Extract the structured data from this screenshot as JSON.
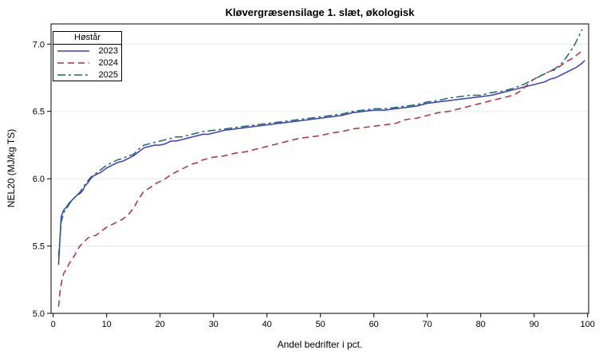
{
  "colors": {
    "background": "#ffffff",
    "grid": "#e9e9e9",
    "frame": "#000000",
    "series_2023": "#3a3acd",
    "series_2024": "#b02e3f",
    "series_2025": "#176d62"
  },
  "chart_data": {
    "type": "line",
    "title": "Kløvergræsensilage 1. slæt, økologisk",
    "xlabel": "Andel bedrifter i pct.",
    "ylabel": "NEL20 (MJ/kg TS)",
    "xlim": [
      -0.4,
      100.2
    ],
    "ylim": [
      5.0,
      7.15
    ],
    "grid": "horizontal",
    "x_ticks": [
      0,
      10,
      20,
      30,
      40,
      50,
      60,
      70,
      80,
      90,
      100
    ],
    "x_tick_labels": [
      "0",
      "10",
      "20",
      "30",
      "40",
      "50",
      "60",
      "70",
      "80",
      "90",
      "100"
    ],
    "y_ticks": [
      5.0,
      5.5,
      6.0,
      6.5,
      7.0
    ],
    "y_tick_labels": [
      "5.0",
      "5.5",
      "6.0",
      "6.5",
      "7.0"
    ],
    "legend": {
      "title": "Høstår",
      "position": "top-left"
    },
    "series": [
      {
        "name": "2023",
        "color": "#3a3acd",
        "dash": "solid",
        "points": [
          [
            1,
            5.36
          ],
          [
            1.2,
            5.5
          ],
          [
            1.5,
            5.72
          ],
          [
            2,
            5.77
          ],
          [
            2.5,
            5.79
          ],
          [
            3,
            5.82
          ],
          [
            3.5,
            5.84
          ],
          [
            4,
            5.86
          ],
          [
            4.5,
            5.88
          ],
          [
            5,
            5.89
          ],
          [
            5.5,
            5.91
          ],
          [
            6,
            5.95
          ],
          [
            6.5,
            5.97
          ],
          [
            7,
            6.0
          ],
          [
            7.5,
            6.02
          ],
          [
            8,
            6.03
          ],
          [
            9,
            6.05
          ],
          [
            10,
            6.08
          ],
          [
            11,
            6.1
          ],
          [
            12,
            6.12
          ],
          [
            13,
            6.13
          ],
          [
            14,
            6.15
          ],
          [
            15,
            6.17
          ],
          [
            16,
            6.2
          ],
          [
            17,
            6.23
          ],
          [
            18,
            6.24
          ],
          [
            19,
            6.25
          ],
          [
            20,
            6.25
          ],
          [
            21,
            6.26
          ],
          [
            22,
            6.28
          ],
          [
            23,
            6.28
          ],
          [
            24,
            6.29
          ],
          [
            25,
            6.3
          ],
          [
            26,
            6.31
          ],
          [
            27,
            6.32
          ],
          [
            28,
            6.33
          ],
          [
            29,
            6.33
          ],
          [
            30,
            6.34
          ],
          [
            32,
            6.36
          ],
          [
            34,
            6.37
          ],
          [
            36,
            6.38
          ],
          [
            38,
            6.39
          ],
          [
            40,
            6.4
          ],
          [
            42,
            6.41
          ],
          [
            44,
            6.42
          ],
          [
            46,
            6.43
          ],
          [
            48,
            6.44
          ],
          [
            50,
            6.45
          ],
          [
            52,
            6.46
          ],
          [
            54,
            6.47
          ],
          [
            56,
            6.49
          ],
          [
            58,
            6.5
          ],
          [
            60,
            6.51
          ],
          [
            62,
            6.51
          ],
          [
            64,
            6.52
          ],
          [
            66,
            6.53
          ],
          [
            68,
            6.54
          ],
          [
            70,
            6.56
          ],
          [
            72,
            6.57
          ],
          [
            74,
            6.58
          ],
          [
            76,
            6.59
          ],
          [
            78,
            6.6
          ],
          [
            80,
            6.61
          ],
          [
            82,
            6.62
          ],
          [
            84,
            6.64
          ],
          [
            86,
            6.66
          ],
          [
            88,
            6.68
          ],
          [
            89,
            6.69
          ],
          [
            90,
            6.7
          ],
          [
            91,
            6.71
          ],
          [
            92,
            6.72
          ],
          [
            93,
            6.74
          ],
          [
            94,
            6.75
          ],
          [
            95,
            6.77
          ],
          [
            96,
            6.79
          ],
          [
            97,
            6.81
          ],
          [
            98,
            6.83
          ],
          [
            99,
            6.86
          ],
          [
            99.5,
            6.88
          ]
        ]
      },
      {
        "name": "2024",
        "color": "#b02e3f",
        "dash": "dash",
        "points": [
          [
            1,
            5.05
          ],
          [
            1.3,
            5.17
          ],
          [
            1.7,
            5.26
          ],
          [
            2,
            5.3
          ],
          [
            2.5,
            5.33
          ],
          [
            3,
            5.37
          ],
          [
            3.5,
            5.4
          ],
          [
            4,
            5.43
          ],
          [
            4.5,
            5.47
          ],
          [
            5,
            5.5
          ],
          [
            5.5,
            5.52
          ],
          [
            6,
            5.54
          ],
          [
            6.5,
            5.56
          ],
          [
            7,
            5.57
          ],
          [
            8,
            5.58
          ],
          [
            9,
            5.61
          ],
          [
            10,
            5.64
          ],
          [
            11,
            5.66
          ],
          [
            12,
            5.68
          ],
          [
            13,
            5.7
          ],
          [
            14,
            5.73
          ],
          [
            15,
            5.78
          ],
          [
            16,
            5.85
          ],
          [
            17,
            5.91
          ],
          [
            18,
            5.93
          ],
          [
            19,
            5.96
          ],
          [
            20,
            5.98
          ],
          [
            21,
            6.0
          ],
          [
            22,
            6.03
          ],
          [
            23,
            6.05
          ],
          [
            24,
            6.07
          ],
          [
            25,
            6.09
          ],
          [
            26,
            6.11
          ],
          [
            27,
            6.12
          ],
          [
            28,
            6.14
          ],
          [
            29,
            6.15
          ],
          [
            30,
            6.16
          ],
          [
            32,
            6.17
          ],
          [
            34,
            6.19
          ],
          [
            36,
            6.2
          ],
          [
            38,
            6.22
          ],
          [
            40,
            6.24
          ],
          [
            42,
            6.26
          ],
          [
            44,
            6.28
          ],
          [
            46,
            6.3
          ],
          [
            48,
            6.31
          ],
          [
            50,
            6.32
          ],
          [
            52,
            6.34
          ],
          [
            54,
            6.35
          ],
          [
            56,
            6.37
          ],
          [
            58,
            6.38
          ],
          [
            60,
            6.39
          ],
          [
            62,
            6.4
          ],
          [
            64,
            6.41
          ],
          [
            66,
            6.44
          ],
          [
            68,
            6.45
          ],
          [
            70,
            6.47
          ],
          [
            72,
            6.49
          ],
          [
            74,
            6.5
          ],
          [
            76,
            6.52
          ],
          [
            78,
            6.54
          ],
          [
            80,
            6.56
          ],
          [
            82,
            6.58
          ],
          [
            84,
            6.6
          ],
          [
            86,
            6.62
          ],
          [
            87,
            6.64
          ],
          [
            88,
            6.67
          ],
          [
            89,
            6.71
          ],
          [
            90,
            6.74
          ],
          [
            91,
            6.76
          ],
          [
            92,
            6.78
          ],
          [
            93,
            6.8
          ],
          [
            94,
            6.81
          ],
          [
            95,
            6.84
          ],
          [
            96,
            6.87
          ],
          [
            97,
            6.89
          ],
          [
            98,
            6.92
          ],
          [
            99,
            6.95
          ]
        ]
      },
      {
        "name": "2025",
        "color": "#176d62",
        "dash": "dash-dot",
        "points": [
          [
            1,
            5.42
          ],
          [
            1.5,
            5.68
          ],
          [
            2,
            5.75
          ],
          [
            2.5,
            5.78
          ],
          [
            3,
            5.81
          ],
          [
            3.5,
            5.84
          ],
          [
            4,
            5.86
          ],
          [
            5,
            5.9
          ],
          [
            6,
            5.96
          ],
          [
            7,
            6.01
          ],
          [
            8,
            6.04
          ],
          [
            9,
            6.07
          ],
          [
            10,
            6.1
          ],
          [
            11,
            6.12
          ],
          [
            12,
            6.14
          ],
          [
            13,
            6.15
          ],
          [
            14,
            6.17
          ],
          [
            15,
            6.18
          ],
          [
            16,
            6.22
          ],
          [
            17,
            6.25
          ],
          [
            18,
            6.26
          ],
          [
            19,
            6.27
          ],
          [
            20,
            6.28
          ],
          [
            21,
            6.29
          ],
          [
            22,
            6.3
          ],
          [
            23,
            6.31
          ],
          [
            24,
            6.31
          ],
          [
            25,
            6.32
          ],
          [
            26,
            6.33
          ],
          [
            28,
            6.35
          ],
          [
            30,
            6.36
          ],
          [
            32,
            6.37
          ],
          [
            34,
            6.38
          ],
          [
            36,
            6.39
          ],
          [
            38,
            6.4
          ],
          [
            40,
            6.41
          ],
          [
            42,
            6.42
          ],
          [
            44,
            6.43
          ],
          [
            46,
            6.44
          ],
          [
            48,
            6.45
          ],
          [
            50,
            6.46
          ],
          [
            52,
            6.47
          ],
          [
            54,
            6.48
          ],
          [
            56,
            6.5
          ],
          [
            58,
            6.51
          ],
          [
            60,
            6.52
          ],
          [
            62,
            6.52
          ],
          [
            64,
            6.53
          ],
          [
            66,
            6.54
          ],
          [
            68,
            6.55
          ],
          [
            70,
            6.57
          ],
          [
            72,
            6.58
          ],
          [
            74,
            6.6
          ],
          [
            76,
            6.61
          ],
          [
            78,
            6.62
          ],
          [
            80,
            6.62
          ],
          [
            82,
            6.64
          ],
          [
            84,
            6.65
          ],
          [
            86,
            6.67
          ],
          [
            88,
            6.7
          ],
          [
            89,
            6.72
          ],
          [
            90,
            6.74
          ],
          [
            91,
            6.76
          ],
          [
            92,
            6.78
          ],
          [
            93,
            6.8
          ],
          [
            94,
            6.82
          ],
          [
            95,
            6.85
          ],
          [
            96,
            6.9
          ],
          [
            97,
            6.96
          ],
          [
            97.5,
            6.99
          ],
          [
            98,
            7.03
          ],
          [
            98.5,
            7.07
          ],
          [
            99,
            7.11
          ]
        ]
      }
    ]
  }
}
